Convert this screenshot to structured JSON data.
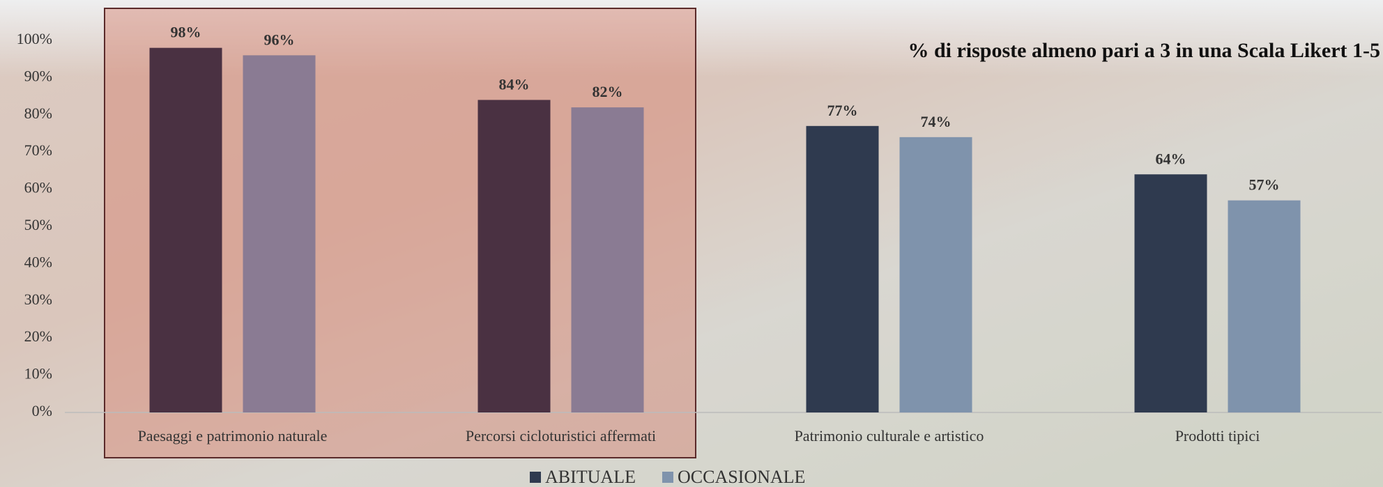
{
  "chart_data": {
    "type": "bar",
    "title": "% di risposte almeno pari a 3 in una Scala Likert 1-5",
    "categories": [
      "Paesaggi e patrimonio naturale",
      "Percorsi cicloturistici affermati",
      "Patrimonio culturale e artistico",
      "Prodotti tipici"
    ],
    "series": [
      {
        "name": "ABITUALE",
        "color": "#2f3a4f",
        "point_colors": [
          "#4a3142",
          "#4a3142",
          "#2f3a4f",
          "#2f3a4f"
        ],
        "values": [
          98,
          84,
          77,
          64
        ],
        "value_labels": [
          "98%",
          "84%",
          "77%",
          "64%"
        ]
      },
      {
        "name": "OCCASIONALE",
        "color": "#7f93ac",
        "point_colors": [
          "#8a7b93",
          "#8a7b93",
          "#7f93ac",
          "#7f93ac"
        ],
        "values": [
          96,
          82,
          74,
          57
        ],
        "value_labels": [
          "96%",
          "82%",
          "74%",
          "57%"
        ]
      }
    ],
    "ylim": [
      0,
      100
    ],
    "yticks": [
      {
        "value": 0,
        "label": "0%"
      },
      {
        "value": 10,
        "label": "10%"
      },
      {
        "value": 20,
        "label": "20%"
      },
      {
        "value": 30,
        "label": "30%"
      },
      {
        "value": 40,
        "label": "40%"
      },
      {
        "value": 50,
        "label": "50%"
      },
      {
        "value": 60,
        "label": "60%"
      },
      {
        "value": 70,
        "label": "70%"
      },
      {
        "value": 80,
        "label": "80%"
      },
      {
        "value": 90,
        "label": "90%"
      },
      {
        "value": 100,
        "label": "100%"
      }
    ],
    "grid": false,
    "legend": "bottom"
  }
}
